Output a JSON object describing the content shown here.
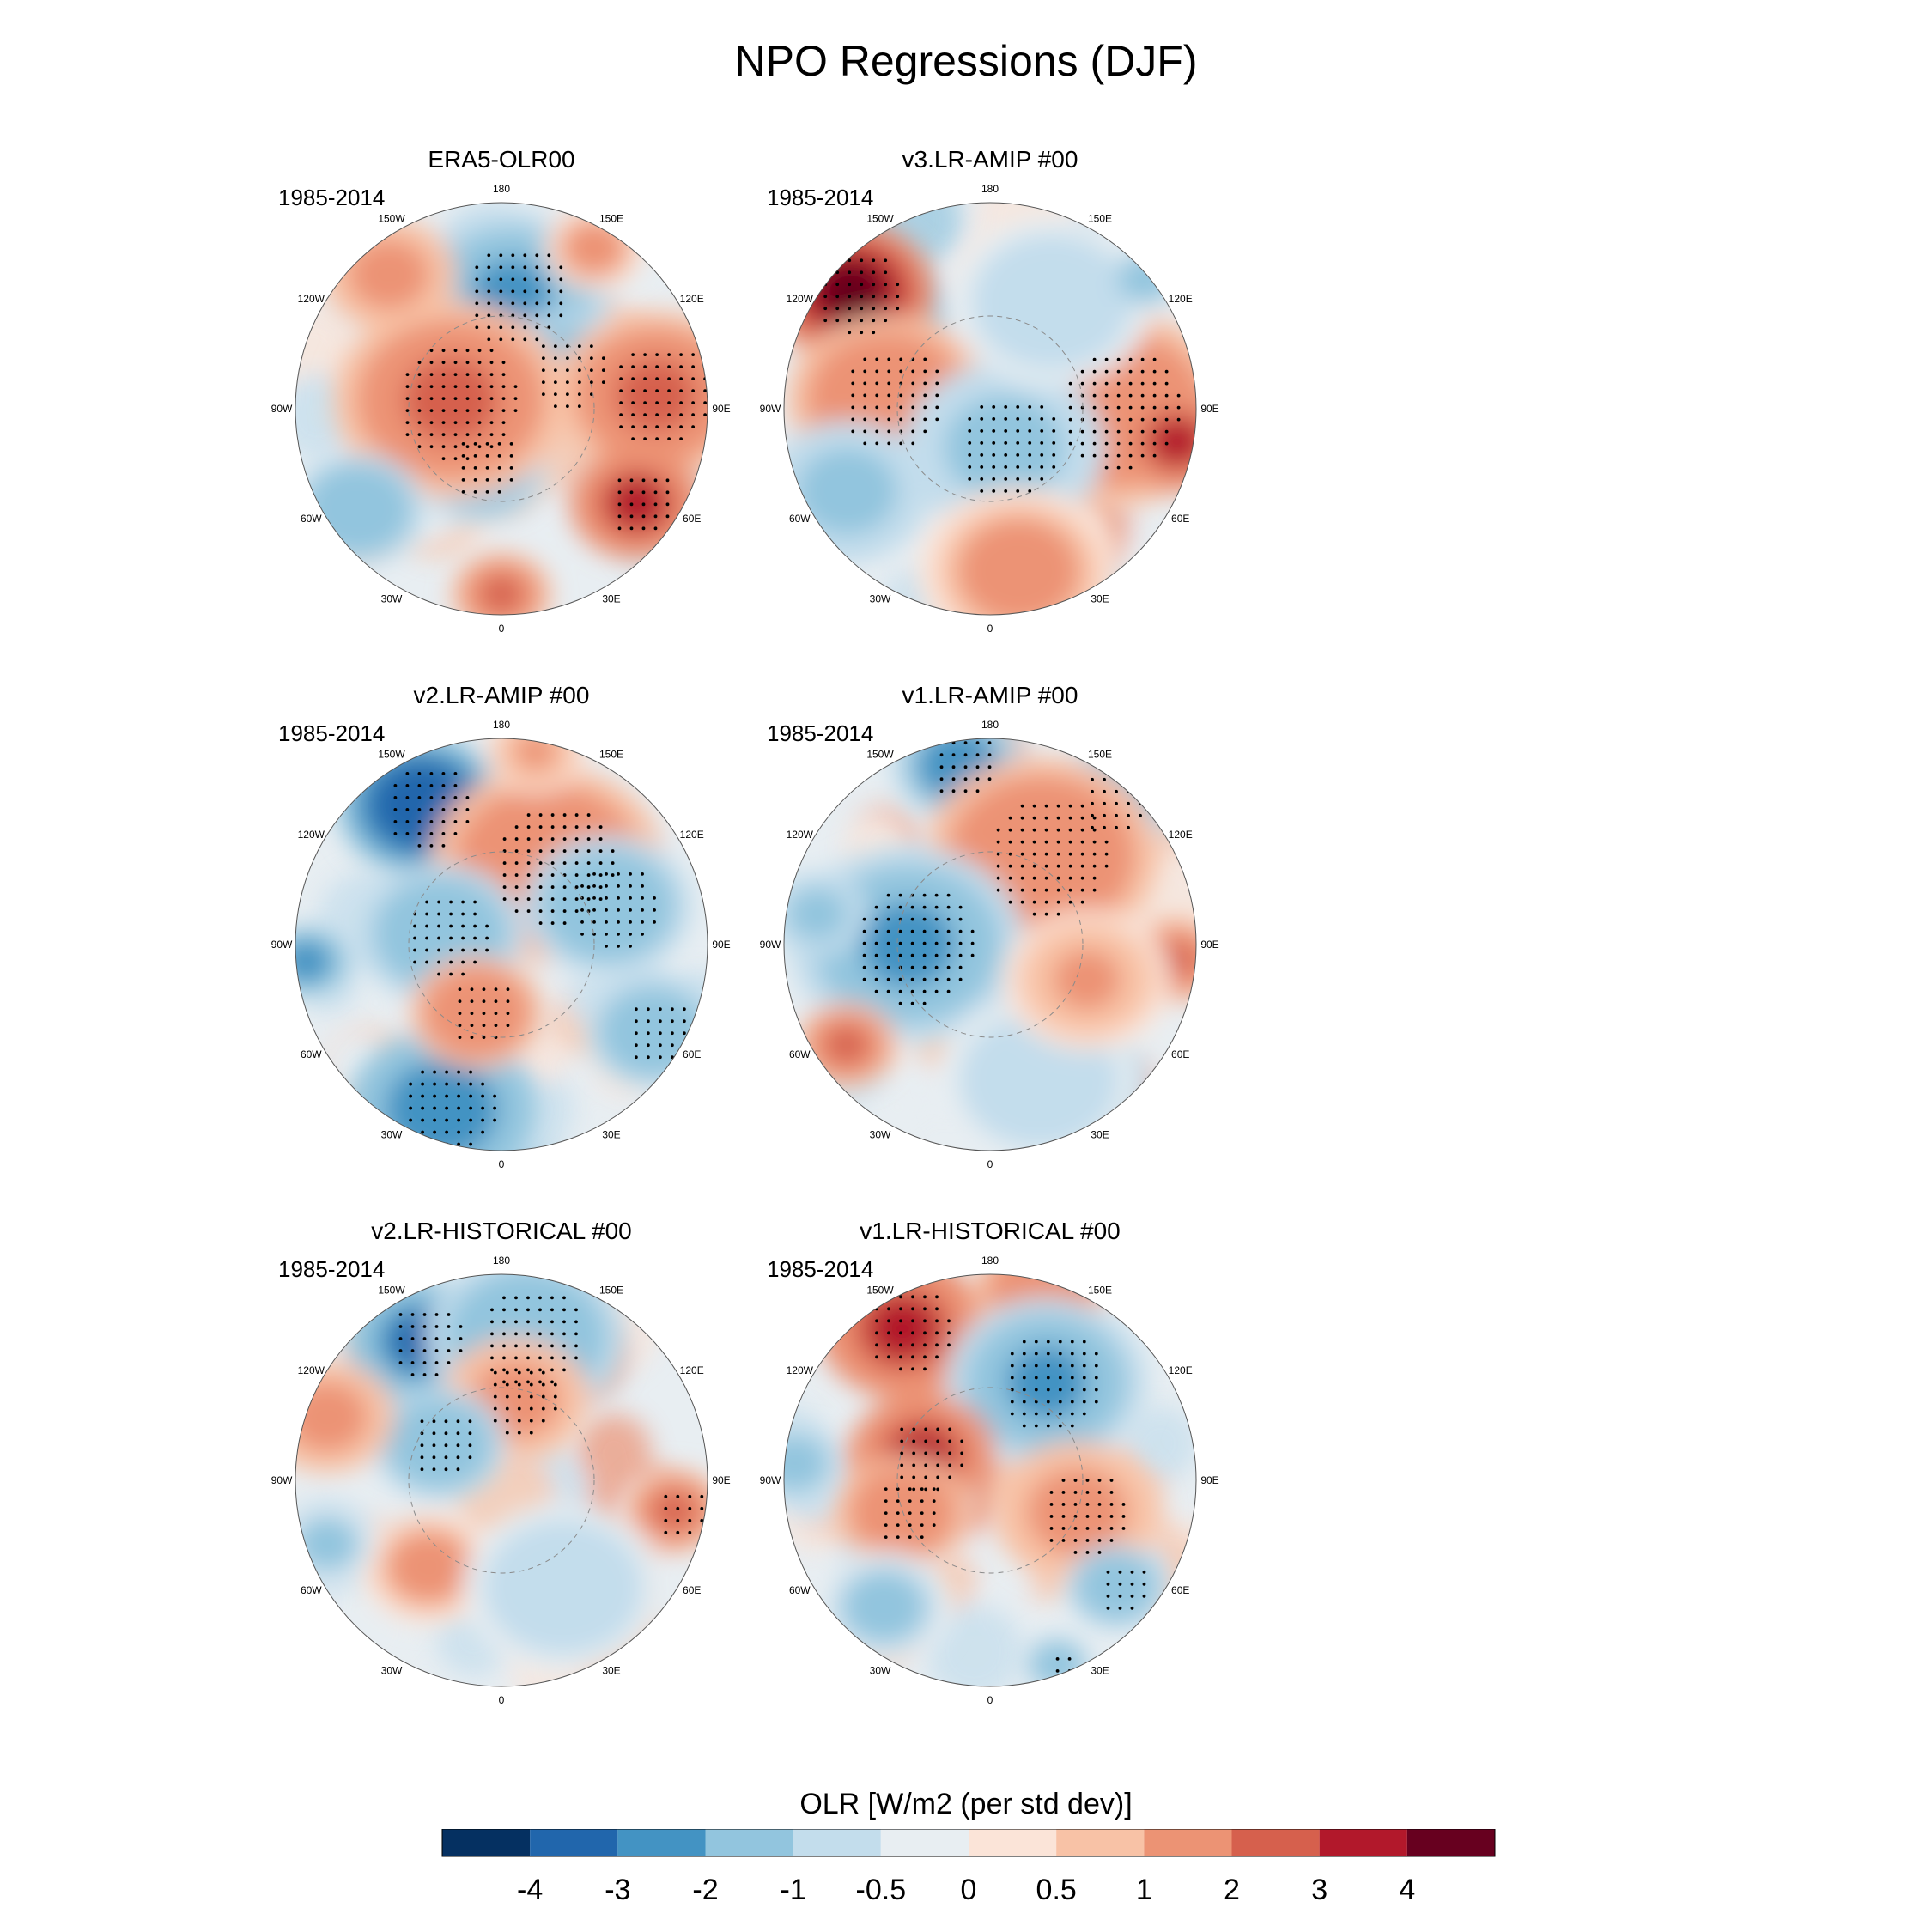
{
  "title": "NPO Regressions (DJF)",
  "chart_data": {
    "type": "heatmap",
    "projection": "north polar stereographic",
    "title": "NPO Regressions (DJF)",
    "variable": "OLR",
    "period": "1985-2014",
    "lon_labels": [
      "180",
      "150E",
      "120E",
      "90E",
      "60E",
      "30E",
      "0",
      "30W",
      "60W",
      "90W",
      "120W",
      "150W"
    ],
    "colorbar": {
      "title": "OLR [W/m2 (per std dev)]",
      "levels": [
        "-4",
        "-3",
        "-2",
        "-1",
        "-0.5",
        "0",
        "0.5",
        "1",
        "2",
        "3",
        "4"
      ],
      "colors": [
        "#053061",
        "#2166ac",
        "#4393c3",
        "#92c5de",
        "#c3ddec",
        "#e8eef2",
        "#fbe4d8",
        "#f8c2a6",
        "#ec9374",
        "#d6604d",
        "#b2182b",
        "#67001f"
      ]
    },
    "panels": [
      {
        "title": "ERA5-OLR00",
        "period": "1985-2014",
        "features": [
          {
            "lon": 175,
            "r": 0.55,
            "value": -2.2,
            "size": 0.3,
            "stipple": true
          },
          {
            "lon": 120,
            "r": 0.35,
            "value": -2.0,
            "size": 0.22,
            "stipple": true
          },
          {
            "lon": -20,
            "r": 0.3,
            "value": -2.2,
            "size": 0.2,
            "stipple": true
          },
          {
            "lon": -100,
            "r": 0.25,
            "value": 2.2,
            "size": 0.35,
            "stipple": true
          },
          {
            "lon": 95,
            "r": 0.75,
            "value": 2.0,
            "size": 0.3,
            "stipple": true
          },
          {
            "lon": 55,
            "r": 0.8,
            "value": 3.0,
            "size": 0.2,
            "stipple": true
          },
          {
            "lon": -55,
            "r": 0.85,
            "value": -2.0,
            "size": 0.2,
            "stipple": false
          },
          {
            "lon": 0,
            "r": 0.9,
            "value": 2.0,
            "size": 0.15,
            "stipple": false
          },
          {
            "lon": -140,
            "r": 0.85,
            "value": 1.5,
            "size": 0.2,
            "stipple": false
          },
          {
            "lon": 150,
            "r": 0.9,
            "value": 1.2,
            "size": 0.15,
            "stipple": false
          }
        ]
      },
      {
        "title": "v3.LR-AMIP  #00",
        "period": "1985-2014",
        "features": [
          {
            "lon": -130,
            "r": 0.88,
            "value": 4.0,
            "size": 0.25,
            "stipple": true
          },
          {
            "lon": -95,
            "r": 0.5,
            "value": 1.8,
            "size": 0.3,
            "stipple": true
          },
          {
            "lon": 90,
            "r": 0.6,
            "value": 1.8,
            "size": 0.35,
            "stipple": true
          },
          {
            "lon": 80,
            "r": 0.92,
            "value": 3.0,
            "size": 0.18,
            "stipple": false
          },
          {
            "lon": 20,
            "r": 0.2,
            "value": -1.5,
            "size": 0.3,
            "stipple": true
          },
          {
            "lon": -60,
            "r": 0.8,
            "value": -1.5,
            "size": 0.25,
            "stipple": false
          },
          {
            "lon": 150,
            "r": 0.6,
            "value": -1.0,
            "size": 0.3,
            "stipple": false
          },
          {
            "lon": 130,
            "r": 0.98,
            "value": -2.0,
            "size": 0.1,
            "stipple": false
          },
          {
            "lon": 10,
            "r": 0.8,
            "value": 1.2,
            "size": 0.3,
            "stipple": false
          }
        ]
      },
      {
        "title": "v2.LR-AMIP  #00",
        "period": "1985-2014",
        "features": [
          {
            "lon": -150,
            "r": 0.78,
            "value": -4.0,
            "size": 0.25,
            "stipple": true
          },
          {
            "lon": -20,
            "r": 0.85,
            "value": -3.0,
            "size": 0.28,
            "stipple": true
          },
          {
            "lon": -85,
            "r": 0.95,
            "value": -3.0,
            "size": 0.12,
            "stipple": false
          },
          {
            "lon": 150,
            "r": 0.45,
            "value": 1.8,
            "size": 0.35,
            "stipple": true
          },
          {
            "lon": -100,
            "r": 0.3,
            "value": -2.0,
            "size": 0.25,
            "stipple": true
          },
          {
            "lon": 110,
            "r": 0.55,
            "value": -2.0,
            "size": 0.25,
            "stipple": true
          },
          {
            "lon": 60,
            "r": 0.85,
            "value": -2.0,
            "size": 0.2,
            "stipple": true
          },
          {
            "lon": -20,
            "r": 0.35,
            "value": 1.8,
            "size": 0.2,
            "stipple": true
          },
          {
            "lon": 170,
            "r": 0.95,
            "value": 1.0,
            "size": 0.15,
            "stipple": false
          }
        ]
      },
      {
        "title": "v1.LR-AMIP  #00",
        "period": "1985-2014",
        "features": [
          {
            "lon": -170,
            "r": 0.88,
            "value": -2.8,
            "size": 0.2,
            "stipple": true
          },
          {
            "lon": 140,
            "r": 0.9,
            "value": -1.8,
            "size": 0.2,
            "stipple": true
          },
          {
            "lon": 150,
            "r": 0.5,
            "value": 1.8,
            "size": 0.35,
            "stipple": true
          },
          {
            "lon": -90,
            "r": 0.4,
            "value": -2.2,
            "size": 0.35,
            "stipple": true
          },
          {
            "lon": 85,
            "r": 0.9,
            "value": 2.2,
            "size": 0.15,
            "stipple": false
          },
          {
            "lon": -55,
            "r": 0.85,
            "value": 2.0,
            "size": 0.15,
            "stipple": false
          },
          {
            "lon": -100,
            "r": 0.85,
            "value": -1.5,
            "size": 0.15,
            "stipple": false
          },
          {
            "lon": 20,
            "r": 0.7,
            "value": -1.0,
            "size": 0.3,
            "stipple": false
          },
          {
            "lon": 70,
            "r": 0.5,
            "value": 1.0,
            "size": 0.25,
            "stipple": false
          }
        ]
      },
      {
        "title": "v2.LR-HISTORICAL  #00",
        "period": "1985-2014",
        "features": [
          {
            "lon": -150,
            "r": 0.78,
            "value": -3.2,
            "size": 0.22,
            "stipple": true
          },
          {
            "lon": 170,
            "r": 0.7,
            "value": -2.0,
            "size": 0.3,
            "stipple": true
          },
          {
            "lon": 170,
            "r": 0.4,
            "value": 1.5,
            "size": 0.22,
            "stipple": true
          },
          {
            "lon": -120,
            "r": 0.35,
            "value": -1.8,
            "size": 0.2,
            "stipple": true
          },
          {
            "lon": 80,
            "r": 0.85,
            "value": 2.0,
            "size": 0.15,
            "stipple": true
          },
          {
            "lon": -110,
            "r": 0.9,
            "value": 1.5,
            "size": 0.2,
            "stipple": false
          },
          {
            "lon": -40,
            "r": 0.55,
            "value": 1.2,
            "size": 0.2,
            "stipple": false
          },
          {
            "lon": 30,
            "r": 0.6,
            "value": -1.0,
            "size": 0.3,
            "stipple": false
          },
          {
            "lon": -70,
            "r": 0.9,
            "value": -1.2,
            "size": 0.15,
            "stipple": false
          }
        ]
      },
      {
        "title": "v1.LR-HISTORICAL  #00",
        "period": "1985-2014",
        "features": [
          {
            "lon": -150,
            "r": 0.85,
            "value": 3.2,
            "size": 0.25,
            "stipple": true
          },
          {
            "lon": 165,
            "r": 0.95,
            "value": 1.8,
            "size": 0.2,
            "stipple": false
          },
          {
            "lon": 150,
            "r": 0.55,
            "value": -2.2,
            "size": 0.3,
            "stipple": true
          },
          {
            "lon": -110,
            "r": 0.35,
            "value": 3.0,
            "size": 0.22,
            "stipple": true
          },
          {
            "lon": -70,
            "r": 0.45,
            "value": 1.8,
            "size": 0.2,
            "stipple": true
          },
          {
            "lon": 70,
            "r": 0.45,
            "value": 1.5,
            "size": 0.25,
            "stipple": true
          },
          {
            "lon": -95,
            "r": 0.95,
            "value": -2.0,
            "size": 0.12,
            "stipple": false
          },
          {
            "lon": 50,
            "r": 0.8,
            "value": -2.0,
            "size": 0.15,
            "stipple": true
          },
          {
            "lon": 20,
            "r": 0.95,
            "value": -2.0,
            "size": 0.1,
            "stipple": true
          },
          {
            "lon": -40,
            "r": 0.8,
            "value": -1.2,
            "size": 0.2,
            "stipple": false
          }
        ]
      }
    ]
  }
}
